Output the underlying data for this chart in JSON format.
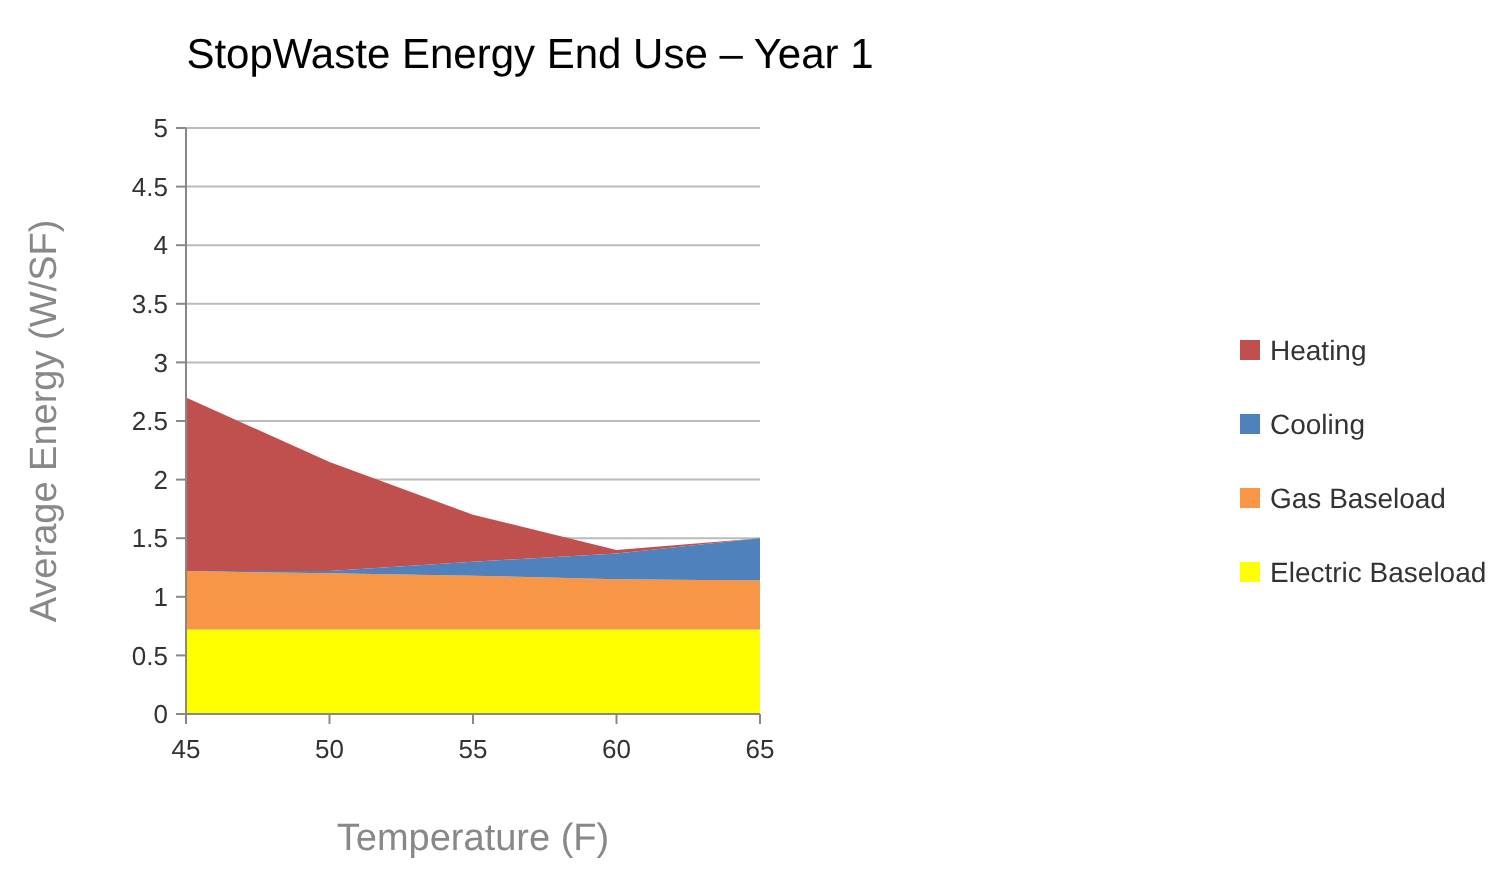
{
  "chart_data": {
    "type": "area",
    "stacked": true,
    "title": "StopWaste Energy End Use – Year 1",
    "xlabel": "Temperature (F)",
    "ylabel": "Average Energy (W/SF)",
    "x": [
      45,
      50,
      55,
      60,
      65
    ],
    "xlim": [
      45,
      65
    ],
    "xticks": [
      45,
      50,
      55,
      60,
      65
    ],
    "ylim": [
      0,
      5
    ],
    "yticks": [
      0,
      0.5,
      1,
      1.5,
      2,
      2.5,
      3,
      3.5,
      4,
      4.5,
      5
    ],
    "grid": "y",
    "legend": "right",
    "series": [
      {
        "name": "Electric Baseload",
        "color": "#ffff00",
        "values": [
          0.72,
          0.72,
          0.72,
          0.72,
          0.72
        ]
      },
      {
        "name": "Gas Baseload",
        "color": "#f79646",
        "values": [
          0.5,
          0.48,
          0.46,
          0.43,
          0.42
        ]
      },
      {
        "name": "Cooling",
        "color": "#4f81bd",
        "values": [
          0,
          0.02,
          0.12,
          0.22,
          0.36
        ]
      },
      {
        "name": "Heating",
        "color": "#c0504d",
        "values": [
          1.48,
          0.93,
          0.4,
          0.03,
          0
        ]
      }
    ]
  }
}
